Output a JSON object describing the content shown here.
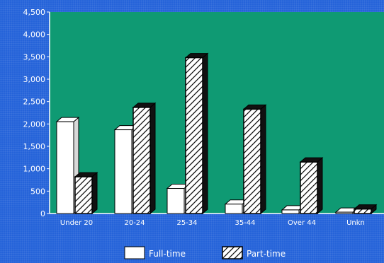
{
  "chart_data": {
    "type": "bar",
    "categories": [
      "Under 20",
      "20-24",
      "25-34",
      "35-44",
      "Over 44",
      "Unkn"
    ],
    "series": [
      {
        "name": "Full-time",
        "values": [
          2050,
          1870,
          560,
          210,
          80,
          30
        ],
        "color": "#ffffff",
        "pattern": "solid"
      },
      {
        "name": "Part-time",
        "values": [
          820,
          2370,
          3480,
          2330,
          1150,
          100
        ],
        "color": "#000000",
        "pattern": "hatched"
      }
    ],
    "y_ticks": [
      "4,500",
      "4,000",
      "3,500",
      "3,000",
      "2,500",
      "2,000",
      "1,500",
      "1,000",
      "500",
      "0"
    ],
    "ylim": [
      0,
      4500
    ],
    "legend_position": "bottom",
    "plot_background": "#0f9a73",
    "page_background": "#2563d9",
    "grid": false
  }
}
